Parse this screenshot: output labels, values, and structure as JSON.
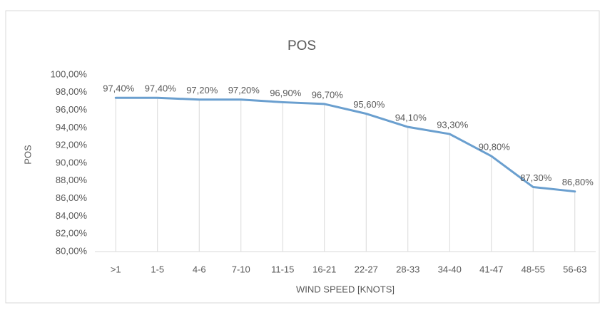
{
  "chart_data": {
    "type": "line",
    "title": "POS",
    "x_label": "WIND SPEED [KNOTS]",
    "y_label": "POS",
    "categories": [
      ">1",
      "1-5",
      "4-6",
      "7-10",
      "11-15",
      "16-21",
      "22-27",
      "28-33",
      "34-40",
      "41-47",
      "48-55",
      "56-63"
    ],
    "series": [
      {
        "name": "POS",
        "color": "#6a9fcf",
        "values": [
          97.4,
          97.4,
          97.2,
          97.2,
          96.9,
          96.7,
          95.6,
          94.1,
          93.3,
          90.8,
          87.3,
          86.8
        ],
        "value_labels": [
          "97,40%",
          "97,40%",
          "97,20%",
          "97,20%",
          "96,90%",
          "96,70%",
          "95,60%",
          "94,10%",
          "93,30%",
          "90,80%",
          "87,30%",
          "86,80%"
        ]
      }
    ],
    "ylim": [
      80,
      100
    ],
    "yticks": [
      {
        "value": 80,
        "label": "80,00%"
      },
      {
        "value": 82,
        "label": "82,00%"
      },
      {
        "value": 84,
        "label": "84,00%"
      },
      {
        "value": 86,
        "label": "86,00%"
      },
      {
        "value": 88,
        "label": "88,00%"
      },
      {
        "value": 90,
        "label": "90,00%"
      },
      {
        "value": 92,
        "label": "92,00%"
      },
      {
        "value": 94,
        "label": "94,00%"
      },
      {
        "value": 96,
        "label": "96,00%"
      },
      {
        "value": 98,
        "label": "98,00%"
      },
      {
        "value": 100,
        "label": "100,00%"
      }
    ],
    "drop_lines": true
  }
}
